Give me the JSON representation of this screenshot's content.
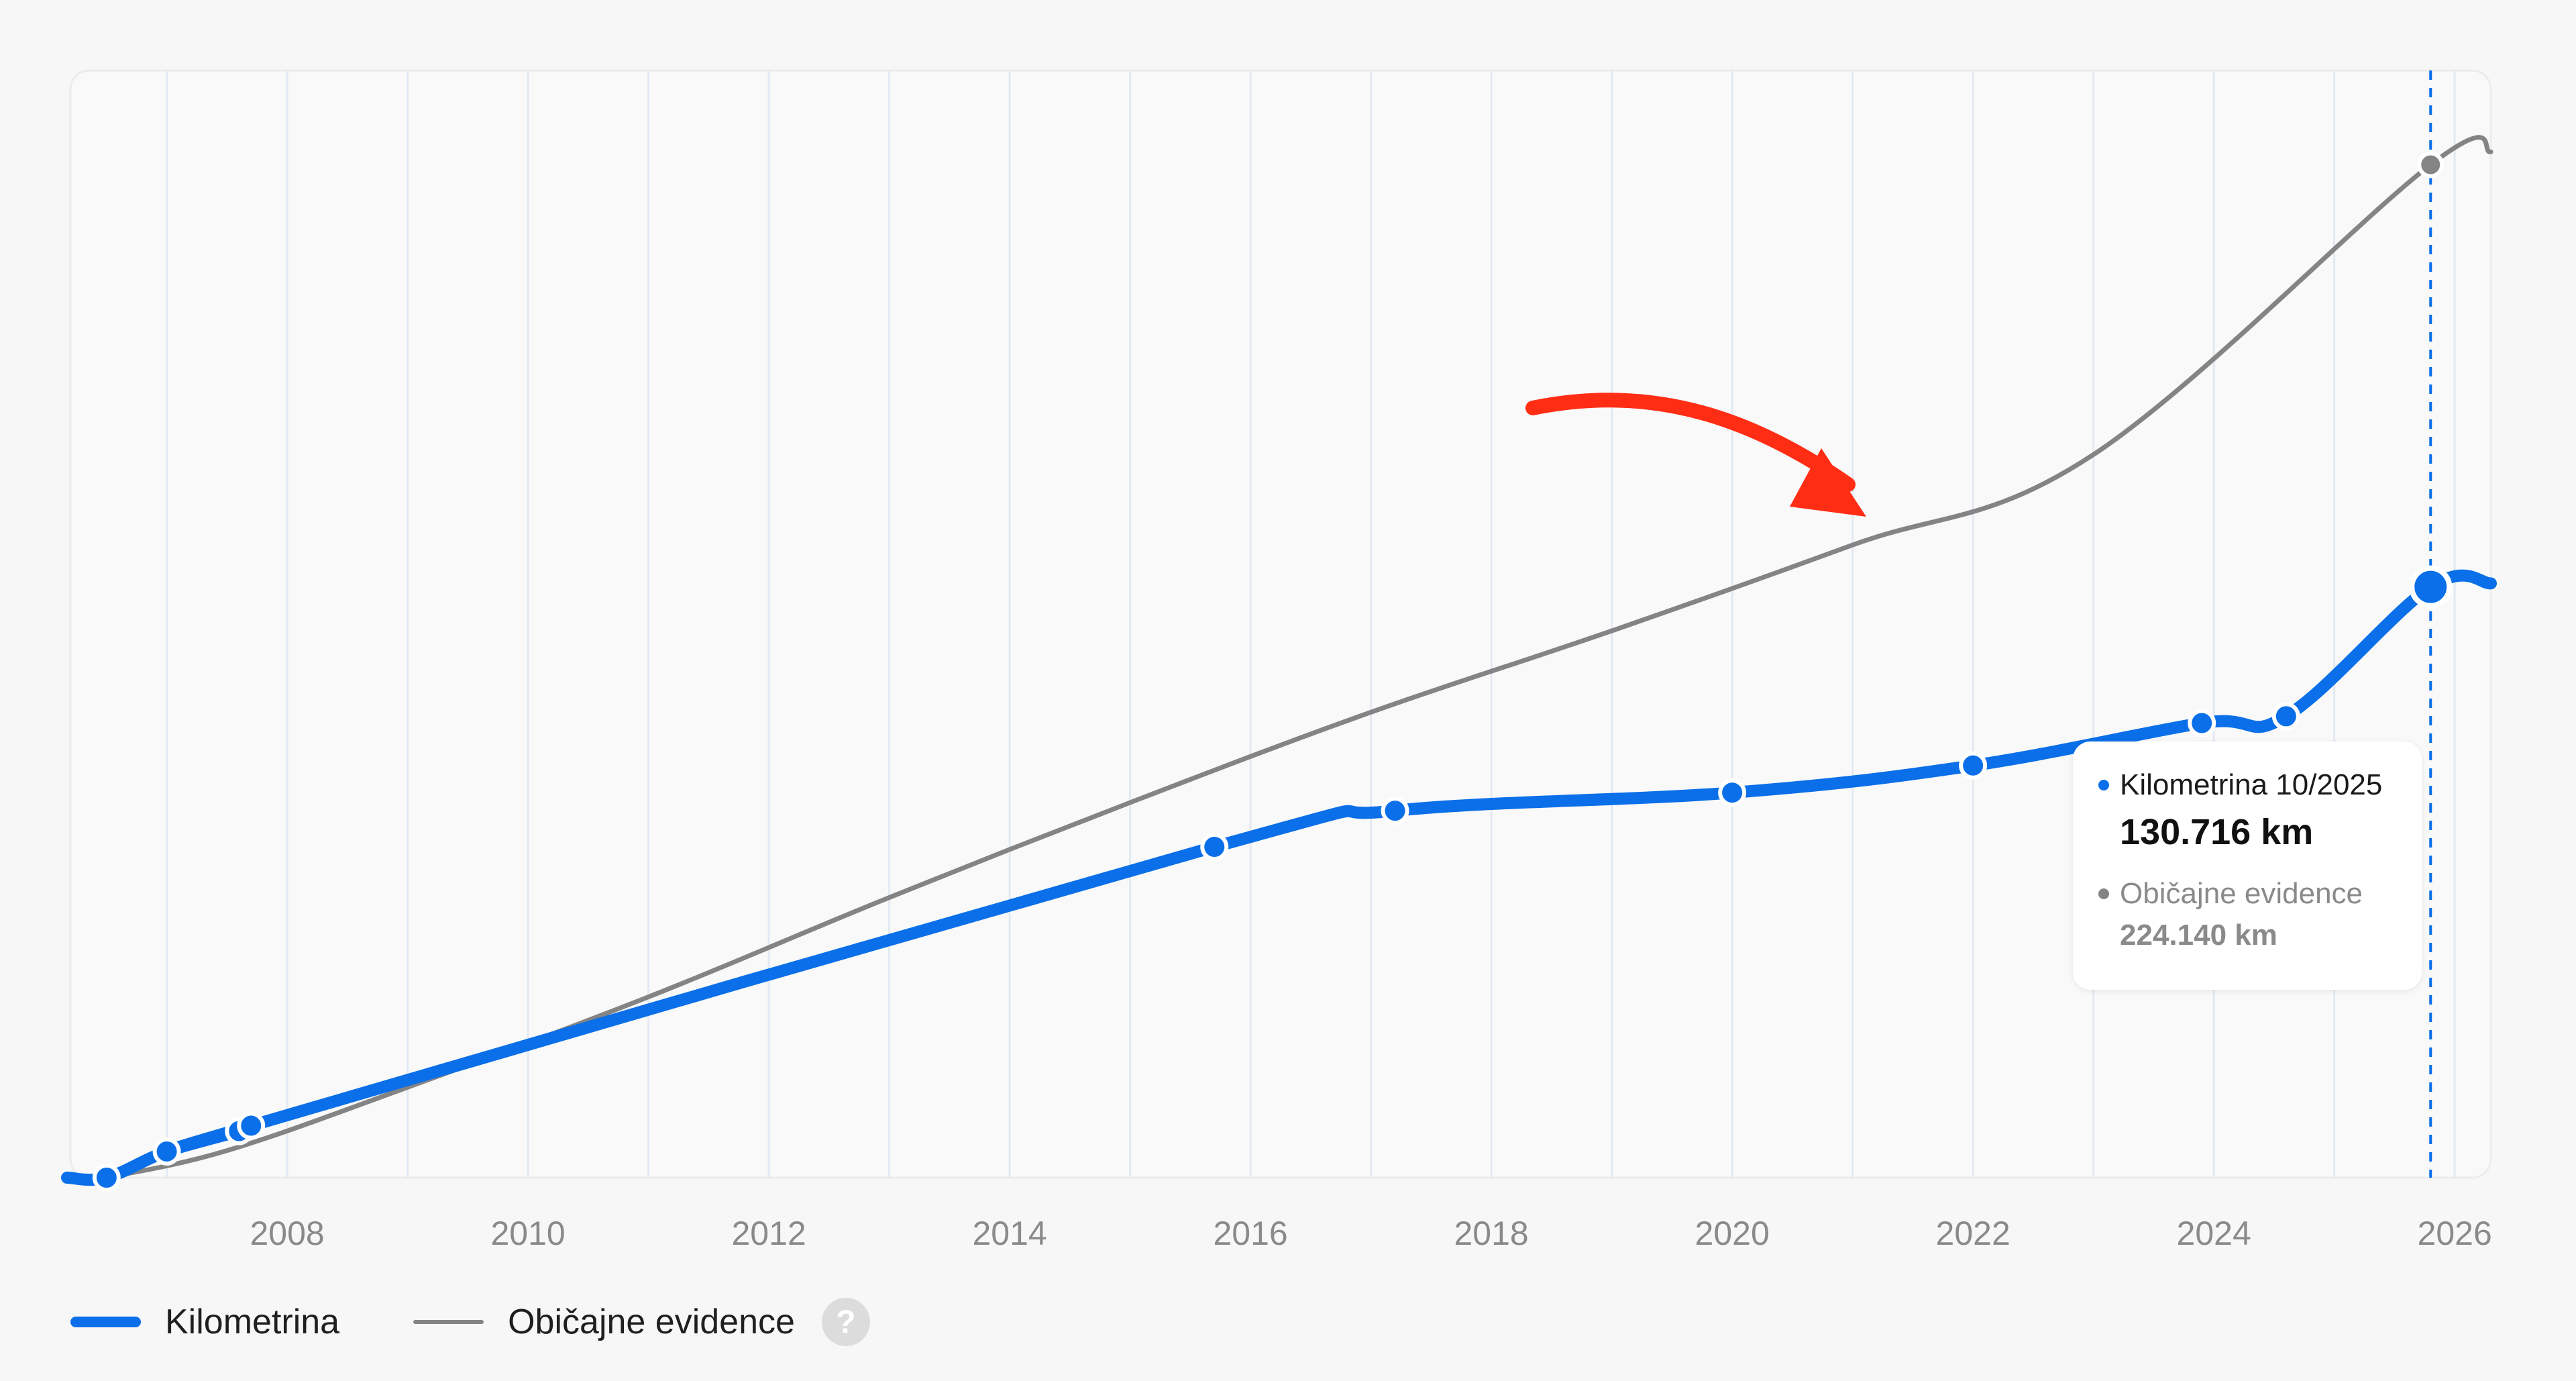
{
  "chart_data": {
    "type": "line",
    "xlim": [
      2006.2,
      2026.3
    ],
    "ylim": [
      0,
      245000
    ],
    "x_ticks": [
      2008,
      2010,
      2012,
      2014,
      2016,
      2018,
      2020,
      2022,
      2024,
      2026
    ],
    "x_tick_labels": [
      "2008",
      "2010",
      "2012",
      "2014",
      "2016",
      "2018",
      "2020",
      "2022",
      "2024",
      "2026"
    ],
    "series": [
      {
        "name": "Kilometrina",
        "color": "#0a6fe8",
        "points": [
          {
            "x": 2006.5,
            "y": 0
          },
          {
            "x": 2007.0,
            "y": 5800
          },
          {
            "x": 2007.6,
            "y": 10300
          },
          {
            "x": 2007.7,
            "y": 11500
          },
          {
            "x": 2015.7,
            "y": 73200
          },
          {
            "x": 2017.2,
            "y": 81200
          },
          {
            "x": 2020.0,
            "y": 85200
          },
          {
            "x": 2022.0,
            "y": 91200
          },
          {
            "x": 2023.9,
            "y": 100600
          },
          {
            "x": 2024.6,
            "y": 102100
          },
          {
            "x": 2025.8,
            "y": 130716
          }
        ],
        "tail": {
          "x": 2026.3,
          "y": 131500
        }
      },
      {
        "name": "Običajne evidence",
        "color": "#848484",
        "points": [
          {
            "x": 2006.5,
            "y": 0
          },
          {
            "x": 2007.5,
            "y": 6000
          },
          {
            "x": 2009.0,
            "y": 20000
          },
          {
            "x": 2011.0,
            "y": 40000
          },
          {
            "x": 2013.0,
            "y": 62000
          },
          {
            "x": 2015.0,
            "y": 83000
          },
          {
            "x": 2017.0,
            "y": 103000
          },
          {
            "x": 2019.0,
            "y": 121000
          },
          {
            "x": 2021.0,
            "y": 140000
          },
          {
            "x": 2023.0,
            "y": 160000
          },
          {
            "x": 2025.8,
            "y": 224140
          },
          {
            "x": 2026.3,
            "y": 227000
          }
        ]
      }
    ],
    "tooltip": {
      "x": 2025.8,
      "title": "Kilometrina 10/2025",
      "value": "130.716 km",
      "secondary_title": "Običajne evidence",
      "secondary_value": "224.140 km"
    },
    "annotation": "red arrow pointing at the Običajne evidence line"
  },
  "legend": {
    "items": [
      {
        "label": "Kilometrina",
        "color": "#0a6fe8"
      },
      {
        "label": "Običajne evidence",
        "color": "#848484"
      }
    ],
    "help_icon": "question-icon",
    "help_symbol": "?"
  },
  "colors": {
    "accent": "#0a6fe8",
    "gray": "#848484",
    "arrow": "#ff2d14",
    "grid": "#e3e9f2"
  }
}
